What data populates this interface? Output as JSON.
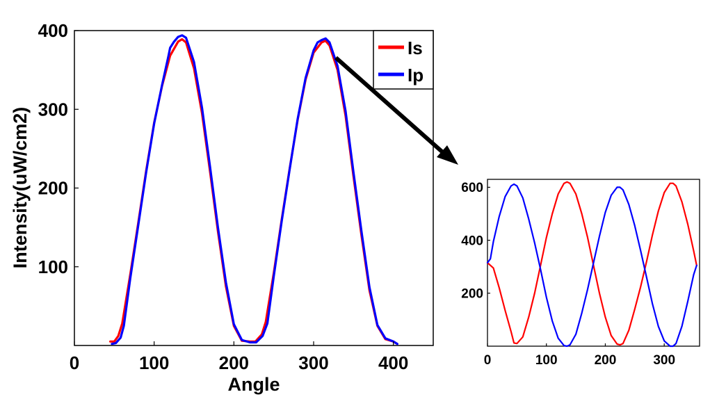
{
  "chart_data": [
    {
      "type": "line",
      "title": "",
      "xlabel": "Angle",
      "ylabel": "Intensity(uW/cm2)",
      "xlim": [
        0,
        450
      ],
      "ylim": [
        0,
        400
      ],
      "xticks": [
        "0",
        "100",
        "200",
        "300",
        "400"
      ],
      "yticks": [
        "100",
        "200",
        "300",
        "400"
      ],
      "legend": {
        "position": "top-right",
        "entries": [
          "Is",
          "Ip"
        ]
      },
      "grid": false,
      "series": [
        {
          "name": "Is",
          "color": "#ff0000",
          "x": [
            45,
            50,
            55,
            60,
            70,
            80,
            90,
            100,
            110,
            120,
            130,
            135,
            140,
            150,
            160,
            170,
            180,
            190,
            200,
            210,
            220,
            227,
            235,
            240,
            250,
            260,
            270,
            280,
            290,
            300,
            310,
            315,
            320,
            330,
            340,
            350,
            360,
            370,
            380,
            390,
            400,
            403
          ],
          "y": [
            5,
            5,
            12,
            28,
            90,
            155,
            222,
            283,
            330,
            368,
            386,
            389,
            385,
            352,
            295,
            222,
            145,
            75,
            25,
            6,
            5,
            5,
            14,
            30,
            92,
            160,
            225,
            287,
            338,
            372,
            385,
            387,
            381,
            350,
            292,
            215,
            140,
            70,
            25,
            8,
            5,
            3
          ]
        },
        {
          "name": "Ip",
          "color": "#0000ff",
          "x": [
            47,
            52,
            58,
            62,
            70,
            80,
            90,
            100,
            110,
            118,
            120,
            125,
            130,
            135,
            140,
            150,
            160,
            170,
            180,
            190,
            200,
            210,
            220,
            228,
            236,
            242,
            250,
            260,
            270,
            280,
            290,
            300,
            305,
            310,
            315,
            320,
            330,
            340,
            350,
            360,
            370,
            380,
            390,
            400,
            405
          ],
          "y": [
            2,
            3,
            10,
            25,
            85,
            152,
            220,
            282,
            331,
            368,
            378,
            386,
            392,
            394,
            391,
            360,
            302,
            228,
            150,
            80,
            27,
            7,
            4,
            4,
            12,
            28,
            88,
            158,
            224,
            288,
            340,
            375,
            385,
            388,
            390,
            385,
            355,
            298,
            220,
            145,
            74,
            26,
            9,
            5,
            2
          ]
        }
      ]
    },
    {
      "type": "line",
      "title": "",
      "xlabel": "",
      "ylabel": "",
      "xlim": [
        0,
        360
      ],
      "ylim": [
        0,
        630
      ],
      "xticks": [
        "0",
        "100",
        "200",
        "300"
      ],
      "yticks": [
        "200",
        "400",
        "600"
      ],
      "grid": false,
      "series": [
        {
          "color": "#ff0000",
          "x": [
            0,
            10,
            20,
            30,
            40,
            45,
            50,
            60,
            70,
            80,
            90,
            100,
            110,
            120,
            130,
            135,
            140,
            150,
            160,
            170,
            180,
            190,
            200,
            210,
            220,
            225,
            230,
            240,
            250,
            260,
            270,
            280,
            290,
            300,
            310,
            315,
            320,
            330,
            340,
            350,
            355
          ],
          "y": [
            315,
            295,
            220,
            135,
            55,
            12,
            10,
            35,
            110,
            200,
            305,
            410,
            500,
            575,
            615,
            620,
            615,
            575,
            500,
            410,
            305,
            200,
            110,
            40,
            8,
            5,
            10,
            60,
            140,
            225,
            320,
            420,
            510,
            580,
            615,
            615,
            605,
            545,
            460,
            360,
            305
          ]
        },
        {
          "color": "#0000ff",
          "x": [
            0,
            5,
            10,
            20,
            30,
            40,
            45,
            50,
            60,
            70,
            80,
            90,
            100,
            110,
            120,
            130,
            135,
            140,
            150,
            160,
            170,
            180,
            190,
            200,
            210,
            220,
            225,
            230,
            240,
            250,
            260,
            270,
            280,
            290,
            300,
            310,
            315,
            320,
            330,
            340,
            350,
            355
          ],
          "y": [
            315,
            330,
            395,
            490,
            565,
            605,
            612,
            605,
            560,
            480,
            390,
            290,
            185,
            95,
            30,
            2,
            0,
            5,
            45,
            125,
            215,
            315,
            415,
            505,
            570,
            600,
            600,
            590,
            535,
            455,
            360,
            260,
            160,
            75,
            20,
            0,
            0,
            10,
            75,
            170,
            270,
            305
          ]
        }
      ]
    }
  ]
}
